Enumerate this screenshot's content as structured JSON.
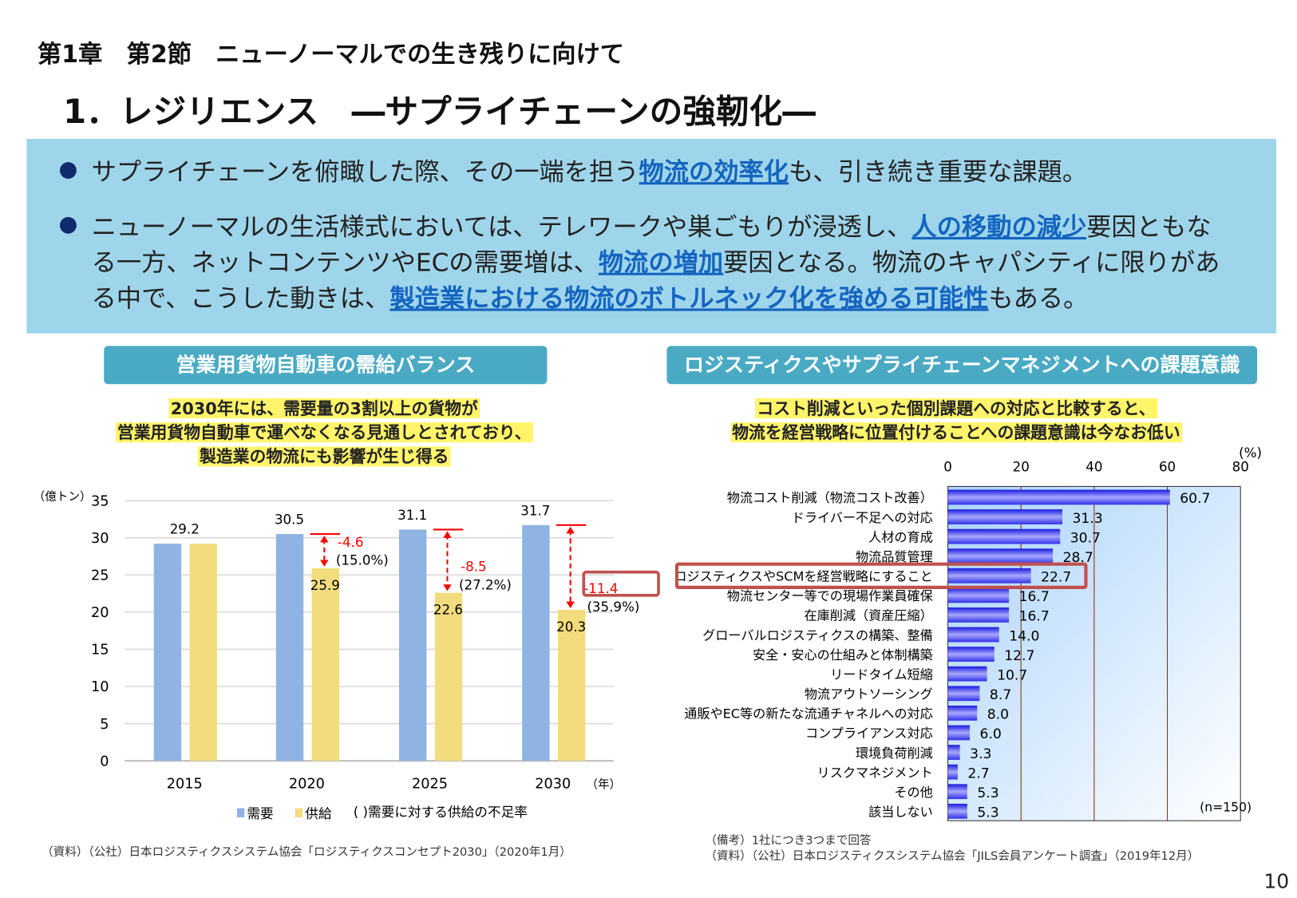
{
  "header": {
    "chapter": "第1章　第2節　ニューノーマルでの生き残りに向けて",
    "title": "1．レジリエンス　―サプライチェーンの強靭化―"
  },
  "bullets": [
    {
      "parts": [
        {
          "t": "サプライチェーンを俯瞰した際、その一端を担う"
        },
        {
          "t": "物流の効率化",
          "hl": true
        },
        {
          "t": "も、引き続き重要な課題。"
        }
      ]
    },
    {
      "lines": [
        [
          {
            "t": "ニューノーマルの生活様式においては、テレワークや巣ごもりが浸透し、"
          },
          {
            "t": "人の移動の減少",
            "hl": true
          },
          {
            "t": "要因ともな"
          }
        ],
        [
          {
            "t": "る一方、ネットコンテンツやECの需要増は、"
          },
          {
            "t": "物流の増加",
            "hl": true
          },
          {
            "t": "要因となる。物流のキャパシティに限りがあ"
          }
        ],
        [
          {
            "t": "る中で、こうした動きは、"
          },
          {
            "t": "製造業における物流のボトルネック化を強める可能性",
            "hl": true
          },
          {
            "t": "もある。"
          }
        ]
      ]
    }
  ],
  "left": {
    "heading": "営業用貨物自動車の需給バランス",
    "subtitle": [
      "2030年には、需要量の3割以上の貨物が",
      "営業用貨物自動車で運べなくなる見通しとされており、",
      "製造業の物流にも影響が生じ得る"
    ],
    "source": "（資料）（公社）日本ロジスティクスシステム協会「ロジスティクスコンセプト2030」（2020年1月）"
  },
  "right": {
    "heading": "ロジスティクスやサプライチェーンマネジメントへの課題意識",
    "subtitle": [
      "コスト削減といった個別課題への対応と比較すると、",
      "物流を経営戦略に位置付けることへの課題意識は今なお低い"
    ],
    "note": "（備考）1社につき3つまで回答",
    "source": "（資料）（公社）日本ロジスティクスシステム協会「JILS会員アンケート調査」（2019年12月）"
  },
  "page_number": "10",
  "chart_data": [
    {
      "type": "bar",
      "categories": [
        "2015",
        "2020",
        "2025",
        "2030"
      ],
      "series": [
        {
          "name": "需要",
          "values": [
            29.2,
            30.5,
            31.1,
            31.7
          ],
          "color": "#8fb3e2"
        },
        {
          "name": "供給",
          "values": [
            29.2,
            25.9,
            22.6,
            20.3
          ],
          "color": "#f2dc7e"
        }
      ],
      "gaps": [
        null,
        "-4.6",
        "-8.5",
        "-11.4"
      ],
      "gap_rates": [
        null,
        "(15.0%)",
        "(27.2%)",
        "(35.9%)"
      ],
      "highlight": "(35.9%)",
      "ylabel": "（億トン）",
      "xlabel": "（年）",
      "ylim": [
        0,
        35
      ],
      "yticks": [
        0,
        5,
        10,
        15,
        20,
        25,
        30,
        35
      ],
      "legend_note": "(  )需要に対する供給の不足率",
      "grid": true,
      "legend": "bottom"
    },
    {
      "type": "bar",
      "orientation": "horizontal",
      "unit": "(%)",
      "n_label": "(n=150)",
      "xlim": [
        0,
        80
      ],
      "xticks": [
        0,
        20,
        40,
        60,
        80
      ],
      "highlight": "ロジスティクスやSCMを経営戦略にすること",
      "categories": [
        "物流コスト削減（物流コスト改善）",
        "ドライバー不足への対応",
        "人材の育成",
        "物流品質管理",
        "ロジスティクスやSCMを経営戦略にすること",
        "物流センター等での現場作業員確保",
        "在庫削減（資産圧縮）",
        "グローバルロジスティクスの構築、整備",
        "安全・安心の仕組みと体制構築",
        "リードタイム短縮",
        "物流アウトソーシング",
        "通販やEC等の新たな流通チャネルへの対応",
        "コンプライアンス対応",
        "環境負荷削減",
        "リスクマネジメント",
        "その他",
        "該当しない"
      ],
      "values": [
        60.7,
        31.3,
        30.7,
        28.7,
        22.7,
        16.7,
        16.7,
        14.0,
        12.7,
        10.7,
        8.7,
        8.0,
        6.0,
        3.3,
        2.7,
        5.3,
        5.3
      ],
      "value_labels": [
        "60.7",
        "31.3",
        "30.7",
        "28.7",
        "22.7",
        "16.7",
        "16.7",
        "14.0",
        "12.7",
        "10.7",
        "8.7",
        "8.0",
        "6.0",
        "3.3",
        "2.7",
        "5.3",
        "5.3"
      ],
      "bar_color": "#4a4af0",
      "grid": true
    }
  ]
}
